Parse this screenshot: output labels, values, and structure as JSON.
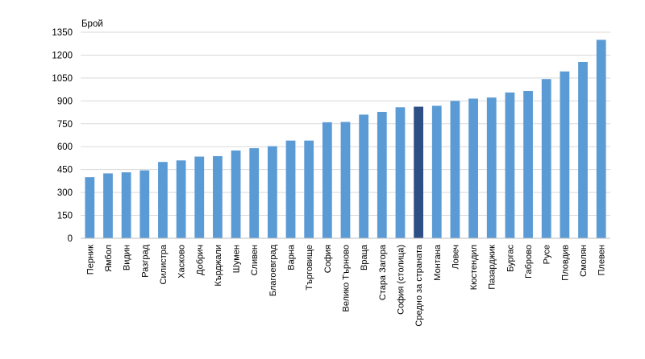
{
  "chart_data": {
    "type": "bar",
    "title": "",
    "xlabel": "",
    "ylabel": "Брой",
    "ylim": [
      0,
      1350
    ],
    "yticks": [
      0,
      150,
      300,
      450,
      600,
      750,
      900,
      1050,
      1200,
      1350
    ],
    "grid": "horizontal",
    "legend": "none",
    "colors": {
      "bar": "#5B9BD5",
      "highlight": "#2E4F86",
      "grid": "#D9D9D9",
      "axis": "#BFBFBF"
    },
    "highlight_category": "Средно за страната",
    "categories": [
      "Перник",
      "Ямбол",
      "Видин",
      "Разград",
      "Силистра",
      "Хасково",
      "Добрич",
      "Кърджали",
      "Шумен",
      "Сливен",
      "Благоевград",
      "Варна",
      "Търговище",
      "София",
      "Велико Търново",
      "Враца",
      "Стара Загора",
      "София (столица)",
      "Средно за страната",
      "Монтана",
      "Ловеч",
      "Кюстендил",
      "Пазарджик",
      "Бургас",
      "Габрово",
      "Русе",
      "Пловдив",
      "Смолян",
      "Плевен"
    ],
    "values": [
      400,
      425,
      432,
      445,
      500,
      510,
      535,
      538,
      575,
      590,
      603,
      640,
      640,
      760,
      762,
      810,
      828,
      858,
      862,
      868,
      900,
      915,
      922,
      955,
      965,
      1043,
      1093,
      1155,
      1300
    ]
  }
}
